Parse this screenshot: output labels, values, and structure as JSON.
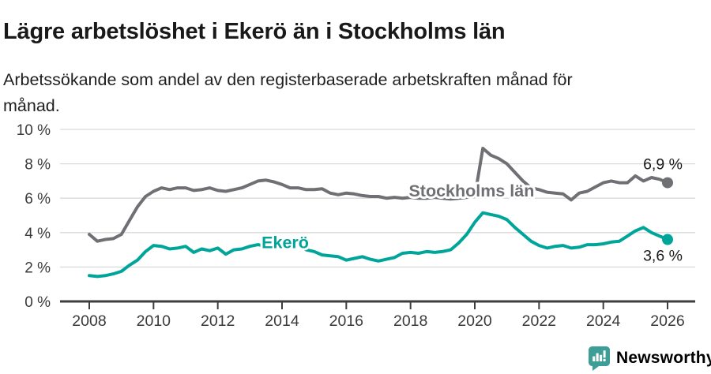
{
  "header": {
    "title": "Lägre arbetslöshet i Ekerö än i Stockholms län",
    "subtitle_lines": [
      "Arbetssökande som andel av den registerbaserade arbetskraften månad för",
      "månad."
    ]
  },
  "chart_data": {
    "type": "line",
    "title": "Lägre arbetslöshet i Ekerö än i Stockholms län",
    "subtitle": "Arbetssökande som andel av den registerbaserade arbetskraften månad för månad.",
    "unit": "%",
    "grid": true,
    "x_start": 2008,
    "x_step": 0.25,
    "xlim": [
      2008,
      2026.1
    ],
    "ylim": [
      0,
      10
    ],
    "x_axis": {
      "ticks": [
        2008,
        2010,
        2012,
        2014,
        2016,
        2018,
        2020,
        2022,
        2024,
        2026
      ],
      "labels": [
        "2008",
        "2010",
        "2012",
        "2014",
        "2016",
        "2018",
        "2020",
        "2022",
        "2024",
        "2026"
      ]
    },
    "y_axis": {
      "ticks": [
        0,
        2,
        4,
        6,
        8,
        10
      ],
      "labels": [
        "0 %",
        "2 %",
        "4 %",
        "6 %",
        "8 %",
        "10 %"
      ]
    },
    "series": [
      {
        "name": "Stockholms län",
        "color": "#6f7074",
        "end_value": 6.9,
        "end_label": "6,9 %",
        "label_pos": {
          "x": 2019.9,
          "y": 6.45
        },
        "values": [
          3.9,
          3.5,
          3.6,
          3.65,
          3.9,
          4.7,
          5.5,
          6.1,
          6.4,
          6.6,
          6.5,
          6.6,
          6.6,
          6.45,
          6.5,
          6.6,
          6.45,
          6.4,
          6.5,
          6.6,
          6.8,
          7.0,
          7.05,
          6.95,
          6.8,
          6.6,
          6.6,
          6.5,
          6.5,
          6.55,
          6.3,
          6.2,
          6.3,
          6.25,
          6.15,
          6.1,
          6.1,
          6.0,
          6.05,
          6.0,
          6.05,
          6.0,
          6.0,
          6.05,
          6.0,
          5.95,
          6.0,
          6.05,
          6.1,
          8.9,
          8.5,
          8.3,
          8.0,
          7.5,
          7.0,
          6.6,
          6.5,
          6.35,
          6.3,
          6.25,
          5.9,
          6.3,
          6.4,
          6.65,
          6.9,
          7.0,
          6.9,
          6.9,
          7.3,
          7.0,
          7.2,
          7.1,
          6.9
        ]
      },
      {
        "name": "Ekerö",
        "color": "#00a59a",
        "end_value": 3.6,
        "end_label": "3,6 %",
        "label_pos": {
          "x": 2014.1,
          "y": 3.45
        },
        "values": [
          1.5,
          1.45,
          1.5,
          1.6,
          1.75,
          2.1,
          2.4,
          2.9,
          3.25,
          3.2,
          3.05,
          3.1,
          3.2,
          2.85,
          3.05,
          2.95,
          3.1,
          2.75,
          3.0,
          3.05,
          3.2,
          3.3,
          3.2,
          3.25,
          3.15,
          3.2,
          3.25,
          3.0,
          2.9,
          2.7,
          2.65,
          2.6,
          2.4,
          2.5,
          2.6,
          2.45,
          2.35,
          2.45,
          2.55,
          2.8,
          2.85,
          2.8,
          2.9,
          2.85,
          2.9,
          3.0,
          3.4,
          3.9,
          4.6,
          5.15,
          5.05,
          4.95,
          4.75,
          4.3,
          3.9,
          3.5,
          3.25,
          3.1,
          3.2,
          3.25,
          3.1,
          3.15,
          3.3,
          3.3,
          3.35,
          3.45,
          3.5,
          3.8,
          4.1,
          4.3,
          4.0,
          3.8,
          3.6
        ]
      }
    ],
    "style": {
      "grid_color": "#d9d9d9",
      "axis_color": "#3c3d3f",
      "tick_label_color": "#3a3a3a",
      "value_label_color": "#1a1a1a"
    }
  },
  "footer": {
    "brand": "Newsworthy",
    "brand_color": "#3d9d97",
    "logo_icon": "speech-bubble-bar-chart-icon"
  }
}
